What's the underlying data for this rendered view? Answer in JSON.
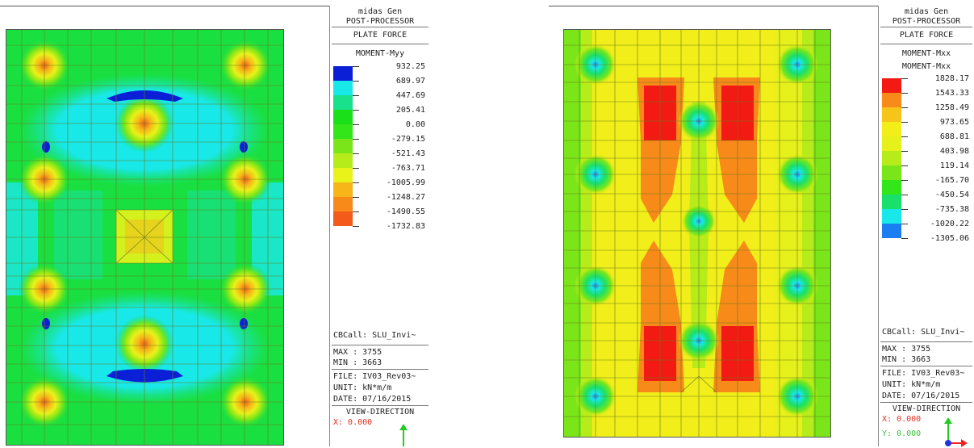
{
  "program": "midas Gen",
  "module": "POST-PROCESSOR",
  "panels": [
    {
      "result_type": "PLATE FORCE",
      "component": "MOMENT-Myy",
      "component_repeat": "",
      "legend_values": [
        "932.25",
        "689.97",
        "447.69",
        "205.41",
        "0.00",
        "-279.15",
        "-521.43",
        "-763.71",
        "-1005.99",
        "-1248.27",
        "-1490.55",
        "-1732.83"
      ],
      "legend_colors": [
        "#0a1fd6",
        "#19e8e8",
        "#19e08a",
        "#19e019",
        "#33e619",
        "#7ae619",
        "#b5ec19",
        "#e9f219",
        "#f7b519",
        "#f78a19",
        "#f45a19"
      ],
      "load_case": "CBCall: SLU_Invi~",
      "max": "MAX : 3755",
      "min": "MIN : 3663",
      "file": "FILE: IV03_Rev03~",
      "unit": "UNIT: kN*m/m",
      "date": "DATE: 07/16/2015",
      "view_direction": "VIEW-DIRECTION",
      "x_value": "X: 0.000",
      "y_value": ""
    },
    {
      "result_type": "PLATE FORCE",
      "component": "MOMENT-Mxx",
      "component_repeat": "MOMENT-Mxx",
      "legend_values": [
        "1828.17",
        "1543.33",
        "1258.49",
        "973.65",
        "688.81",
        "403.98",
        "119.14",
        "-165.70",
        "-450.54",
        "-735.38",
        "-1020.22",
        "-1305.06"
      ],
      "legend_colors": [
        "#f21a12",
        "#f78a19",
        "#f7c519",
        "#f2ee19",
        "#e6f01a",
        "#b5ec19",
        "#7ae619",
        "#33e619",
        "#19e06a",
        "#19e8e8",
        "#1a7ef2"
      ],
      "load_case": "CBCall: SLU_Invi~",
      "max": "MAX : 3755",
      "min": "MIN : 3663",
      "file": "FILE: IV03_Rev03~",
      "unit": "UNIT: kN*m/m",
      "date": "DATE: 07/16/2015",
      "view_direction": "VIEW-DIRECTION",
      "x_value": "X: 0.000",
      "y_value": "Y: 0.000"
    }
  ],
  "colors": {
    "plate_base_left": "#19e040",
    "plate_base_right": "#f2ee19",
    "mesh_lines": "#6a7a20",
    "axis_green": "#22cc22",
    "axis_red": "#ee2222",
    "axis_blue": "#2233dd"
  }
}
